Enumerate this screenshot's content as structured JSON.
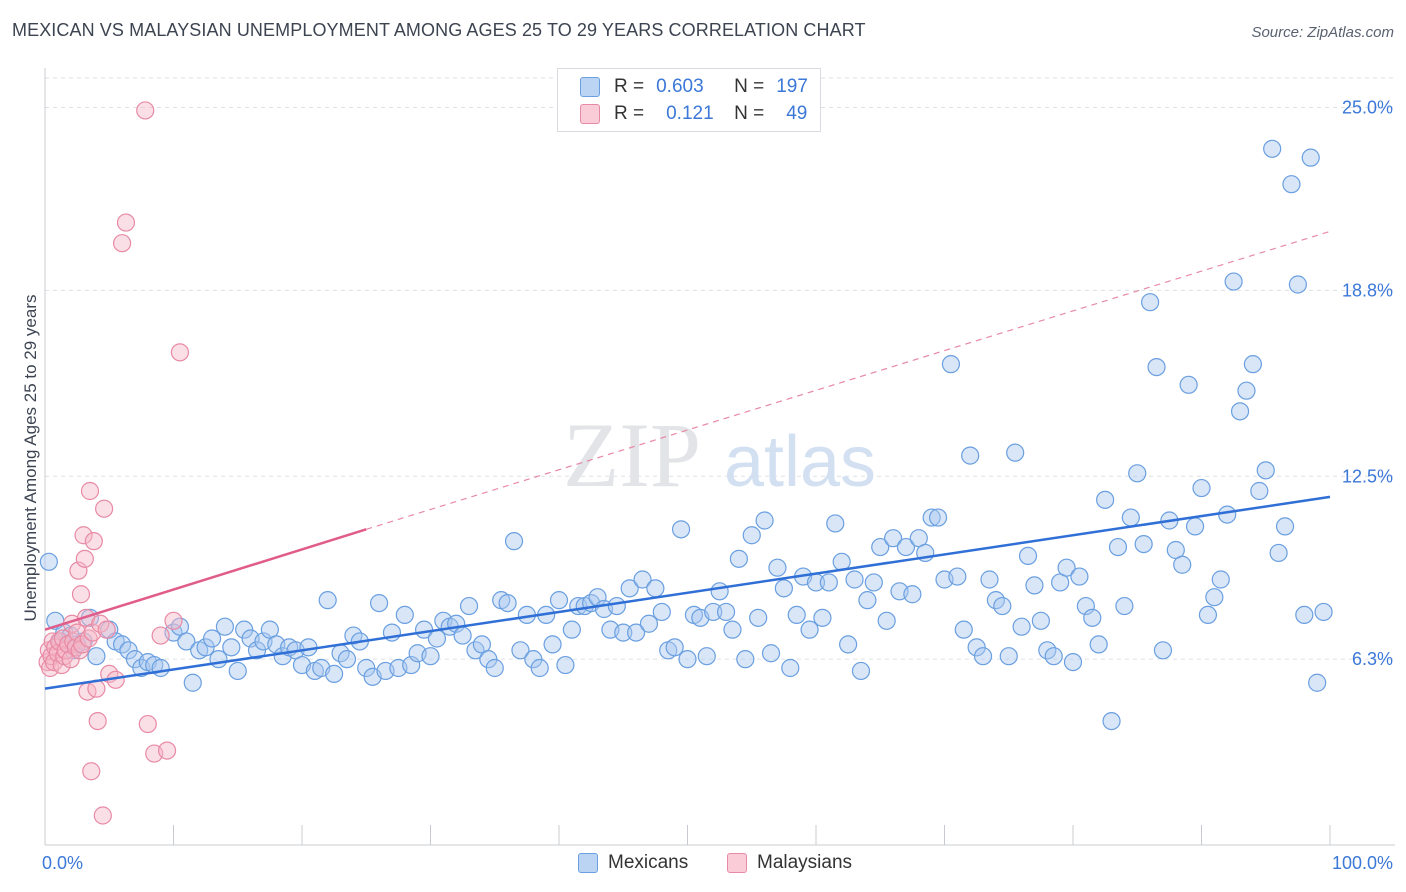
{
  "title": "MEXICAN VS MALAYSIAN UNEMPLOYMENT AMONG AGES 25 TO 29 YEARS CORRELATION CHART",
  "source": "Source: ZipAtlas.com",
  "watermark": {
    "zip": "ZIP",
    "atlas": "atlas"
  },
  "legend": {
    "r_label": "R =",
    "n_label": "N =",
    "rows": [
      {
        "r": "0.603",
        "n": "197"
      },
      {
        "r": "0.121",
        "n": "49"
      }
    ]
  },
  "colors": {
    "blue_fill": "#a8c8f0",
    "blue_stroke": "#6a9fe0",
    "blue_line": "#2f6fd6",
    "pink_fill": "#f7b8c8",
    "pink_stroke": "#e88aa5",
    "pink_line": "#e05c8a",
    "tick_text": "#3b78d8",
    "grid": "#dde1e6"
  },
  "chart_data": {
    "type": "scatter",
    "title": "MEXICAN VS MALAYSIAN UNEMPLOYMENT AMONG AGES 25 TO 29 YEARS CORRELATION CHART",
    "xlabel": "",
    "ylabel": "Unemployment Among Ages 25 to 29 years",
    "xlim": [
      0,
      100
    ],
    "ylim": [
      0,
      26
    ],
    "x_tick_labels": [
      "0.0%",
      "100.0%"
    ],
    "y_ticks": [
      6.3,
      12.5,
      18.8,
      25.0
    ],
    "y_tick_labels": [
      "6.3%",
      "12.5%",
      "18.8%",
      "25.0%"
    ],
    "grid": true,
    "legend_position": "bottom-center",
    "series": [
      {
        "name": "Mexicans",
        "color": "#a8c8f0",
        "trend": {
          "x": [
            0,
            100
          ],
          "y": [
            5.3,
            11.8
          ]
        },
        "points": [
          [
            0.3,
            9.6
          ],
          [
            0.8,
            7.6
          ],
          [
            1.2,
            6.9
          ],
          [
            1.5,
            7.2
          ],
          [
            2,
            7.1
          ],
          [
            2.2,
            6.6
          ],
          [
            2.5,
            6.8
          ],
          [
            3,
            6.9
          ],
          [
            3.5,
            7.7
          ],
          [
            4,
            6.4
          ],
          [
            5,
            7.3
          ],
          [
            5.5,
            6.9
          ],
          [
            6,
            6.8
          ],
          [
            6.5,
            6.6
          ],
          [
            7,
            6.3
          ],
          [
            7.5,
            6.0
          ],
          [
            8,
            6.2
          ],
          [
            8.5,
            6.1
          ],
          [
            9,
            6.0
          ],
          [
            10,
            7.2
          ],
          [
            10.5,
            7.4
          ],
          [
            11,
            6.9
          ],
          [
            11.5,
            5.5
          ],
          [
            12,
            6.6
          ],
          [
            12.5,
            6.7
          ],
          [
            13,
            7.0
          ],
          [
            13.5,
            6.3
          ],
          [
            14,
            7.4
          ],
          [
            14.5,
            6.7
          ],
          [
            15,
            5.9
          ],
          [
            15.5,
            7.3
          ],
          [
            16,
            7.0
          ],
          [
            16.5,
            6.6
          ],
          [
            17,
            6.9
          ],
          [
            17.5,
            7.3
          ],
          [
            18,
            6.8
          ],
          [
            18.5,
            6.4
          ],
          [
            19,
            6.7
          ],
          [
            19.5,
            6.6
          ],
          [
            20,
            6.1
          ],
          [
            20.5,
            6.7
          ],
          [
            21,
            5.9
          ],
          [
            21.5,
            6.0
          ],
          [
            22,
            8.3
          ],
          [
            22.5,
            5.8
          ],
          [
            23,
            6.5
          ],
          [
            23.5,
            6.3
          ],
          [
            24,
            7.1
          ],
          [
            24.5,
            6.9
          ],
          [
            25,
            6.0
          ],
          [
            25.5,
            5.7
          ],
          [
            26,
            8.2
          ],
          [
            26.5,
            5.9
          ],
          [
            27,
            7.2
          ],
          [
            27.5,
            6.0
          ],
          [
            28,
            7.8
          ],
          [
            28.5,
            6.1
          ],
          [
            29,
            6.5
          ],
          [
            29.5,
            7.3
          ],
          [
            30,
            6.4
          ],
          [
            30.5,
            7.0
          ],
          [
            31,
            7.6
          ],
          [
            31.5,
            7.4
          ],
          [
            32,
            7.5
          ],
          [
            32.5,
            7.1
          ],
          [
            33,
            8.1
          ],
          [
            33.5,
            6.6
          ],
          [
            34,
            6.8
          ],
          [
            34.5,
            6.3
          ],
          [
            35,
            6.0
          ],
          [
            35.5,
            8.3
          ],
          [
            36,
            8.2
          ],
          [
            36.5,
            10.3
          ],
          [
            37,
            6.6
          ],
          [
            37.5,
            7.8
          ],
          [
            38,
            6.3
          ],
          [
            38.5,
            6.0
          ],
          [
            39,
            7.8
          ],
          [
            39.5,
            6.8
          ],
          [
            40,
            8.3
          ],
          [
            40.5,
            6.1
          ],
          [
            41,
            7.3
          ],
          [
            41.5,
            8.1
          ],
          [
            42,
            8.1
          ],
          [
            42.5,
            8.2
          ],
          [
            43,
            8.4
          ],
          [
            43.5,
            8.0
          ],
          [
            44,
            7.3
          ],
          [
            44.5,
            8.1
          ],
          [
            45,
            7.2
          ],
          [
            45.5,
            8.7
          ],
          [
            46,
            7.2
          ],
          [
            46.5,
            9.0
          ],
          [
            47,
            7.5
          ],
          [
            47.5,
            8.7
          ],
          [
            48,
            7.9
          ],
          [
            48.5,
            6.6
          ],
          [
            49,
            6.7
          ],
          [
            49.5,
            10.7
          ],
          [
            50,
            6.3
          ],
          [
            50.5,
            7.8
          ],
          [
            51,
            7.7
          ],
          [
            51.5,
            6.4
          ],
          [
            52,
            7.9
          ],
          [
            52.5,
            8.6
          ],
          [
            53,
            7.9
          ],
          [
            53.5,
            7.3
          ],
          [
            54,
            9.7
          ],
          [
            54.5,
            6.3
          ],
          [
            55,
            10.5
          ],
          [
            55.5,
            7.7
          ],
          [
            56,
            11.0
          ],
          [
            56.5,
            6.5
          ],
          [
            57,
            9.4
          ],
          [
            57.5,
            8.7
          ],
          [
            58,
            6.0
          ],
          [
            58.5,
            7.8
          ],
          [
            59,
            9.1
          ],
          [
            59.5,
            7.3
          ],
          [
            60,
            8.9
          ],
          [
            60.5,
            7.7
          ],
          [
            61,
            8.9
          ],
          [
            61.5,
            10.9
          ],
          [
            62,
            9.6
          ],
          [
            62.5,
            6.8
          ],
          [
            63,
            9.0
          ],
          [
            63.5,
            5.9
          ],
          [
            64,
            8.3
          ],
          [
            64.5,
            8.9
          ],
          [
            65,
            10.1
          ],
          [
            65.5,
            7.6
          ],
          [
            66,
            10.4
          ],
          [
            66.5,
            8.6
          ],
          [
            67,
            10.1
          ],
          [
            67.5,
            8.5
          ],
          [
            68,
            10.4
          ],
          [
            68.5,
            9.9
          ],
          [
            69,
            11.1
          ],
          [
            69.5,
            11.1
          ],
          [
            70,
            9.0
          ],
          [
            70.5,
            16.3
          ],
          [
            71,
            9.1
          ],
          [
            71.5,
            7.3
          ],
          [
            72,
            13.2
          ],
          [
            72.5,
            6.7
          ],
          [
            73,
            6.4
          ],
          [
            73.5,
            9.0
          ],
          [
            74,
            8.3
          ],
          [
            74.5,
            8.1
          ],
          [
            75,
            6.4
          ],
          [
            75.5,
            13.3
          ],
          [
            76,
            7.4
          ],
          [
            76.5,
            9.8
          ],
          [
            77,
            8.8
          ],
          [
            77.5,
            7.6
          ],
          [
            78,
            6.6
          ],
          [
            78.5,
            6.4
          ],
          [
            79,
            8.9
          ],
          [
            79.5,
            9.4
          ],
          [
            80,
            6.2
          ],
          [
            80.5,
            9.1
          ],
          [
            81,
            8.1
          ],
          [
            81.5,
            7.7
          ],
          [
            82,
            6.8
          ],
          [
            82.5,
            11.7
          ],
          [
            83,
            4.2
          ],
          [
            83.5,
            10.1
          ],
          [
            84,
            8.1
          ],
          [
            84.5,
            11.1
          ],
          [
            85,
            12.6
          ],
          [
            85.5,
            10.2
          ],
          [
            86,
            18.4
          ],
          [
            86.5,
            16.2
          ],
          [
            87,
            6.6
          ],
          [
            87.5,
            11.0
          ],
          [
            88,
            10.0
          ],
          [
            88.5,
            9.5
          ],
          [
            89,
            15.6
          ],
          [
            89.5,
            10.8
          ],
          [
            90,
            12.1
          ],
          [
            90.5,
            7.8
          ],
          [
            91,
            8.4
          ],
          [
            91.5,
            9.0
          ],
          [
            92,
            11.2
          ],
          [
            92.5,
            19.1
          ],
          [
            93,
            14.7
          ],
          [
            93.5,
            15.4
          ],
          [
            94,
            16.3
          ],
          [
            94.5,
            12.0
          ],
          [
            95,
            12.7
          ],
          [
            95.5,
            23.6
          ],
          [
            96,
            9.9
          ],
          [
            96.5,
            10.8
          ],
          [
            97,
            22.4
          ],
          [
            97.5,
            19.0
          ],
          [
            98,
            7.8
          ],
          [
            98.5,
            23.3
          ],
          [
            99,
            5.5
          ],
          [
            99.5,
            7.9
          ]
        ]
      },
      {
        "name": "Malaysians",
        "color": "#f7b8c8",
        "trend": {
          "x": [
            0,
            25
          ],
          "y": [
            7.3,
            10.7
          ]
        },
        "trend_dashed": {
          "x": [
            25,
            100
          ],
          "y": [
            10.7,
            20.8
          ]
        },
        "points": [
          [
            0.2,
            6.2
          ],
          [
            0.3,
            6.6
          ],
          [
            0.4,
            6.0
          ],
          [
            0.5,
            6.4
          ],
          [
            0.6,
            6.9
          ],
          [
            0.7,
            6.2
          ],
          [
            0.8,
            6.7
          ],
          [
            1.0,
            6.5
          ],
          [
            1.1,
            6.9
          ],
          [
            1.3,
            6.1
          ],
          [
            1.4,
            7.0
          ],
          [
            1.5,
            6.4
          ],
          [
            1.6,
            6.6
          ],
          [
            1.8,
            6.8
          ],
          [
            2.0,
            6.3
          ],
          [
            2.1,
            7.5
          ],
          [
            2.2,
            6.9
          ],
          [
            2.4,
            6.7
          ],
          [
            2.5,
            7.2
          ],
          [
            2.6,
            9.3
          ],
          [
            2.7,
            6.6
          ],
          [
            2.8,
            8.5
          ],
          [
            2.9,
            6.8
          ],
          [
            3.0,
            10.5
          ],
          [
            3.1,
            9.7
          ],
          [
            3.2,
            7.7
          ],
          [
            3.3,
            5.2
          ],
          [
            3.4,
            7.0
          ],
          [
            3.5,
            12.0
          ],
          [
            3.6,
            2.5
          ],
          [
            3.7,
            7.2
          ],
          [
            3.8,
            10.3
          ],
          [
            4.0,
            5.3
          ],
          [
            4.1,
            4.2
          ],
          [
            4.3,
            7.5
          ],
          [
            4.5,
            1.0
          ],
          [
            4.6,
            11.4
          ],
          [
            4.8,
            7.3
          ],
          [
            5.0,
            5.8
          ],
          [
            5.5,
            5.6
          ],
          [
            6.0,
            20.4
          ],
          [
            6.3,
            21.1
          ],
          [
            7.8,
            24.9
          ],
          [
            8.0,
            4.1
          ],
          [
            8.5,
            3.1
          ],
          [
            9.0,
            7.1
          ],
          [
            9.5,
            3.2
          ],
          [
            10.0,
            7.6
          ],
          [
            10.5,
            16.7
          ]
        ]
      }
    ]
  },
  "bottom_legend": [
    {
      "label": "Mexicans"
    },
    {
      "label": "Malaysians"
    }
  ]
}
